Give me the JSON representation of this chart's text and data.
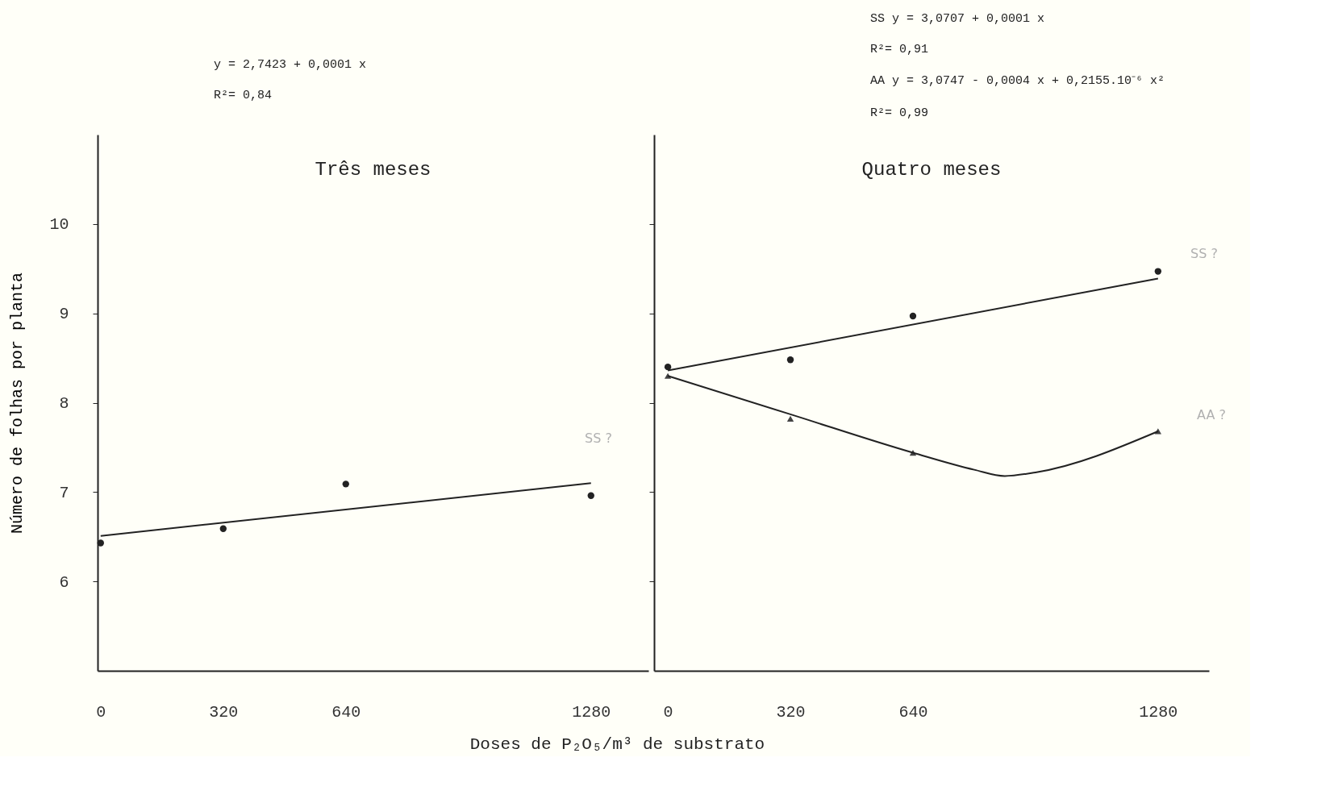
{
  "chart_data": [
    {
      "type": "scatter",
      "title": "Três meses",
      "xlabel": "Doses de P₂O₅/m³ de substrato",
      "ylabel": "Número de folhas por planta",
      "xlim": [
        -8,
        1430
      ],
      "xticks": [
        0,
        320,
        640,
        1280
      ],
      "ylim": [
        5,
        11
      ],
      "yticks": [
        6,
        7,
        8,
        9,
        10
      ],
      "grid": false,
      "series": [
        {
          "type": "scatter",
          "marker": "circle",
          "color": "#222222",
          "x": [
            0,
            320,
            640,
            1280
          ],
          "values": [
            6.43,
            6.59,
            7.09,
            6.96
          ]
        },
        {
          "type": "line",
          "color": "#222222",
          "x": [
            0,
            1280
          ],
          "values": [
            6.51,
            7.1
          ]
        }
      ],
      "annotations": [
        "y = 2,7423 + 0,0001 x",
        "R²= 0,84",
        "SS ?"
      ]
    },
    {
      "type": "scatter",
      "title": "Quatro meses",
      "tick_labels": "x",
      "xlim": [
        -36,
        1413
      ],
      "xticks": [
        0,
        320,
        640,
        1280
      ],
      "ylim": [
        5,
        11
      ],
      "yticks": [
        6,
        7,
        8,
        9,
        10
      ],
      "grid": false,
      "series": [
        {
          "type": "scatter",
          "marker": "circle",
          "color": "#222222",
          "x": [
            0,
            320,
            640,
            1280
          ],
          "values": [
            8.4,
            8.48,
            8.97,
            9.47
          ]
        },
        {
          "type": "line",
          "color": "#222222",
          "x": [
            0,
            1280
          ],
          "values": [
            8.36,
            9.39
          ]
        },
        {
          "type": "scatter",
          "marker": "triangle",
          "color": "#444444",
          "x": [
            0,
            320,
            640,
            1280
          ],
          "values": [
            8.3,
            7.82,
            7.44,
            7.68
          ]
        },
        {
          "type": "line",
          "color": "#222222",
          "x": [
            0,
            320,
            640,
            800,
            880,
            960,
            1280
          ],
          "values": [
            8.3,
            7.87,
            7.44,
            7.25,
            7.18,
            7.22,
            7.68
          ]
        }
      ],
      "annotations": [
        "SS   y = 3,0707 + 0,0001 x",
        "     R²= 0,91",
        "AA   y = 3,0747 - 0,0004 x + 0,2155.10⁻⁶ x²",
        "     R²= 0,99",
        "SS ?",
        "AA ?"
      ]
    }
  ]
}
